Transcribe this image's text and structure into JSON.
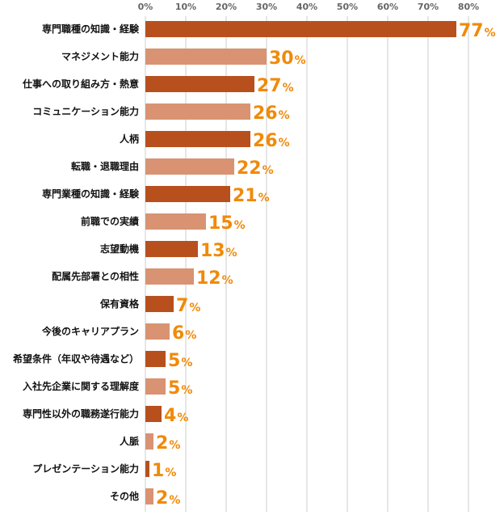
{
  "chart_data": {
    "type": "bar",
    "orientation": "horizontal",
    "xlim": [
      0,
      80
    ],
    "ticks": [
      "0%",
      "10%",
      "20%",
      "30%",
      "40%",
      "50%",
      "60%",
      "70%",
      "80%"
    ],
    "tick_position": "top",
    "grid": true,
    "categories": [
      "専門職種の知識・経験",
      "マネジメント能力",
      "仕事への取り組み方・熱意",
      "コミュニケーション能力",
      "人柄",
      "転職・退職理由",
      "専門業種の知識・経験",
      "前職での実績",
      "志望動機",
      "配属先部署との相性",
      "保有資格",
      "今後のキャリアプラン",
      "希望条件（年収や待遇など）",
      "入社先企業に関する理解度",
      "専門性以外の職務遂行能力",
      "人脈",
      "プレゼンテーション能力",
      "その他"
    ],
    "values": [
      77,
      30,
      27,
      26,
      26,
      22,
      21,
      15,
      13,
      12,
      7,
      6,
      5,
      5,
      4,
      2,
      1,
      2
    ],
    "value_labels": [
      "77",
      "30",
      "27",
      "26",
      "26",
      "22",
      "21",
      "15",
      "13",
      "12",
      "7",
      "6",
      "5",
      "5",
      "4",
      "2",
      "1",
      "2"
    ],
    "value_unit": "%",
    "colors": {
      "bar_primary": "#b8501e",
      "bar_secondary": "#d99373",
      "value_label": "#f08a0a",
      "grid": "#cccccc",
      "tick": "#666666"
    },
    "bar_color_pattern": "alternating"
  }
}
